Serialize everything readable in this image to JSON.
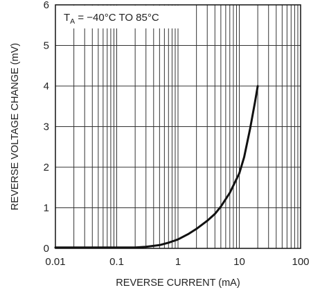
{
  "chart_data": {
    "type": "line",
    "title": "",
    "xlabel": "REVERSE CURRENT (mA)",
    "ylabel": "REVERSE VOLTAGE CHANGE (mV)",
    "x_scale": "log",
    "xlim": [
      0.01,
      100
    ],
    "ylim": [
      0,
      6
    ],
    "x_ticks": [
      "0.01",
      "0.1",
      "1",
      "10",
      "100"
    ],
    "y_ticks": [
      "0",
      "1",
      "2",
      "3",
      "4",
      "5",
      "6"
    ],
    "grid": true,
    "annotation": {
      "main": "T",
      "sub": "A",
      "rest": " = −40°C TO 85°C"
    },
    "series": [
      {
        "color": "#111111",
        "x": [
          0.01,
          0.05,
          0.1,
          0.15,
          0.2,
          0.3,
          0.5,
          0.7,
          1,
          1.5,
          2,
          3,
          4,
          5,
          7,
          10,
          12,
          15,
          18,
          20
        ],
        "y": [
          0.02,
          0.02,
          0.02,
          0.02,
          0.02,
          0.04,
          0.08,
          0.14,
          0.22,
          0.36,
          0.48,
          0.68,
          0.85,
          1.03,
          1.37,
          1.85,
          2.25,
          2.95,
          3.6,
          4.0
        ]
      }
    ]
  }
}
